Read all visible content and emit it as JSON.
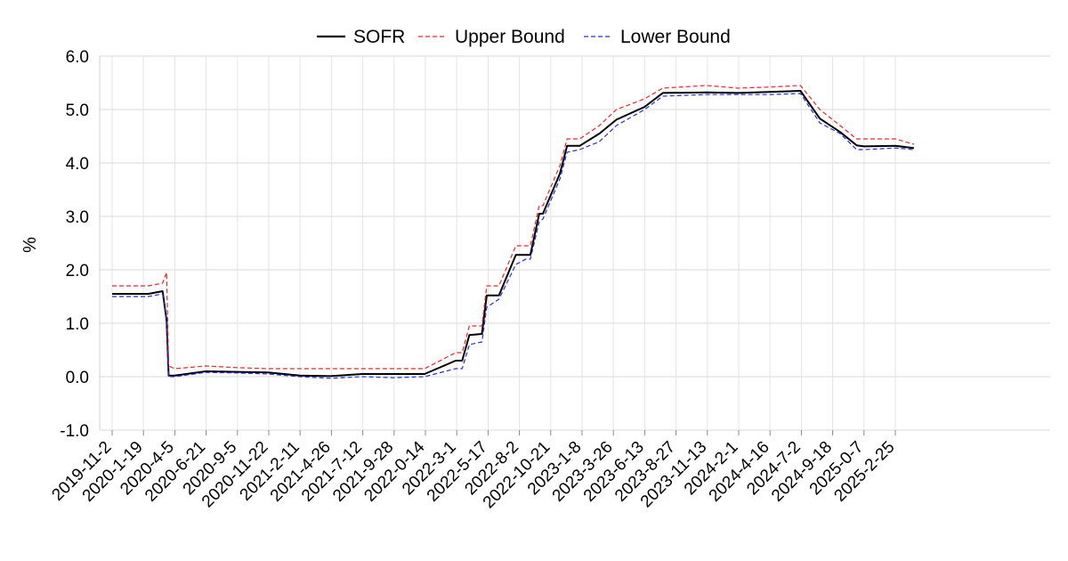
{
  "chart_data": {
    "type": "line",
    "ylabel": "%",
    "ylim": [
      -1.0,
      6.0
    ],
    "yticks": [
      "-1.0",
      "0.0",
      "1.0",
      "2.0",
      "3.0",
      "4.0",
      "5.0",
      "6.0"
    ],
    "xtick_labels": [
      "2019-11-2",
      "2020-1-19",
      "2020-4-5",
      "2020-6-21",
      "2020-9-5",
      "2020-11-22",
      "2021-2-11",
      "2021-4-26",
      "2021-7-12",
      "2021-9-28",
      "2022-0-14",
      "2022-3-1",
      "2022-5-17",
      "2022-8-2",
      "2022-10-21",
      "2023-1-8",
      "2023-3-26",
      "2023-6-13",
      "2023-8-27",
      "2023-11-13",
      "2024-2-1",
      "2024-4-16",
      "2024-7-2",
      "2024-9-18",
      "2025-0-7",
      "2025-2-25"
    ],
    "grid": true,
    "legend_position": "top-center",
    "series": [
      {
        "name": "SOFR",
        "color": "#000000",
        "style": "solid",
        "x": [
          "2019-11-2",
          "2019-12-20",
          "2020-2-1",
          "2020-3-5",
          "2020-3-15",
          "2020-3-20",
          "2020-4-5",
          "2020-6-21",
          "2020-9-5",
          "2020-11-22",
          "2021-2-11",
          "2021-4-26",
          "2021-7-12",
          "2021-9-28",
          "2022-0-14",
          "2022-3-1",
          "2022-3-17",
          "2022-4-5",
          "2022-5-5",
          "2022-5-17",
          "2022-6-17",
          "2022-7-28",
          "2022-8-22",
          "2022-9-3",
          "2022-9-25",
          "2022-10-3",
          "2022-11-15",
          "2023-0-2",
          "2023-1-2",
          "2023-2-23",
          "2023-4-4",
          "2023-6-13",
          "2023-7-27",
          "2023-11-13",
          "2024-2-1",
          "2024-4-16",
          "2024-7-2",
          "2024-8-19",
          "2024-10-8",
          "2024-11-19",
          "2025-0-7",
          "2025-2-25",
          "2025-4-10"
        ],
        "values": [
          1.55,
          1.55,
          1.55,
          1.6,
          1.05,
          0.02,
          0.02,
          0.1,
          0.09,
          0.08,
          0.02,
          0.01,
          0.05,
          0.05,
          0.05,
          0.3,
          0.3,
          0.78,
          0.8,
          1.52,
          1.52,
          2.28,
          2.28,
          2.28,
          3.05,
          3.05,
          3.8,
          4.32,
          4.32,
          4.55,
          4.81,
          5.05,
          5.31,
          5.32,
          5.31,
          5.33,
          5.35,
          4.83,
          4.58,
          4.33,
          4.31,
          4.32,
          4.28
        ]
      },
      {
        "name": "Upper Bound",
        "color": "#e8262b",
        "style": "dashed",
        "x": [
          "2019-11-2",
          "2019-12-20",
          "2020-2-1",
          "2020-3-5",
          "2020-3-15",
          "2020-3-20",
          "2020-4-5",
          "2020-6-21",
          "2020-9-5",
          "2020-11-22",
          "2021-2-11",
          "2021-4-26",
          "2021-7-12",
          "2021-9-28",
          "2022-0-14",
          "2022-3-1",
          "2022-3-17",
          "2022-4-5",
          "2022-5-5",
          "2022-5-17",
          "2022-6-17",
          "2022-7-28",
          "2022-8-22",
          "2022-9-3",
          "2022-9-25",
          "2022-10-3",
          "2022-11-15",
          "2023-0-2",
          "2023-1-2",
          "2023-2-23",
          "2023-4-4",
          "2023-6-13",
          "2023-7-27",
          "2023-11-13",
          "2024-2-1",
          "2024-4-16",
          "2024-7-2",
          "2024-8-19",
          "2024-10-8",
          "2024-11-19",
          "2025-0-7",
          "2025-2-25",
          "2025-4-10"
        ],
        "values": [
          1.7,
          1.7,
          1.7,
          1.75,
          1.95,
          0.2,
          0.15,
          0.2,
          0.17,
          0.15,
          0.15,
          0.15,
          0.15,
          0.15,
          0.15,
          0.45,
          0.45,
          0.95,
          0.95,
          1.7,
          1.7,
          2.45,
          2.45,
          2.45,
          3.2,
          3.2,
          3.95,
          4.45,
          4.45,
          4.7,
          5.0,
          5.2,
          5.4,
          5.45,
          5.4,
          5.42,
          5.45,
          5.0,
          4.7,
          4.45,
          4.45,
          4.45,
          4.35
        ]
      },
      {
        "name": "Lower Bound",
        "color": "#2530d4",
        "style": "dashed",
        "x": [
          "2019-11-2",
          "2019-12-20",
          "2020-2-1",
          "2020-3-5",
          "2020-3-15",
          "2020-3-20",
          "2020-4-5",
          "2020-6-21",
          "2020-9-5",
          "2020-11-22",
          "2021-2-11",
          "2021-4-26",
          "2021-7-12",
          "2021-9-28",
          "2022-0-14",
          "2022-3-1",
          "2022-3-17",
          "2022-4-5",
          "2022-5-5",
          "2022-5-17",
          "2022-6-17",
          "2022-7-28",
          "2022-8-22",
          "2022-9-3",
          "2022-9-25",
          "2022-10-3",
          "2022-11-15",
          "2023-0-2",
          "2023-1-2",
          "2023-2-23",
          "2023-4-4",
          "2023-6-13",
          "2023-7-27",
          "2023-11-13",
          "2024-2-1",
          "2024-4-16",
          "2024-7-2",
          "2024-8-19",
          "2024-10-8",
          "2024-11-19",
          "2025-0-7",
          "2025-2-25",
          "2025-4-10"
        ],
        "values": [
          1.5,
          1.5,
          1.5,
          1.55,
          1.0,
          0.0,
          0.0,
          0.08,
          0.07,
          0.05,
          0.0,
          -0.03,
          0.0,
          -0.02,
          0.0,
          0.15,
          0.15,
          0.6,
          0.65,
          1.3,
          1.45,
          2.1,
          2.2,
          2.2,
          2.9,
          2.95,
          3.7,
          4.2,
          4.25,
          4.4,
          4.7,
          5.0,
          5.25,
          5.28,
          5.28,
          5.28,
          5.3,
          4.75,
          4.55,
          4.25,
          4.25,
          4.28,
          4.25
        ]
      }
    ]
  }
}
